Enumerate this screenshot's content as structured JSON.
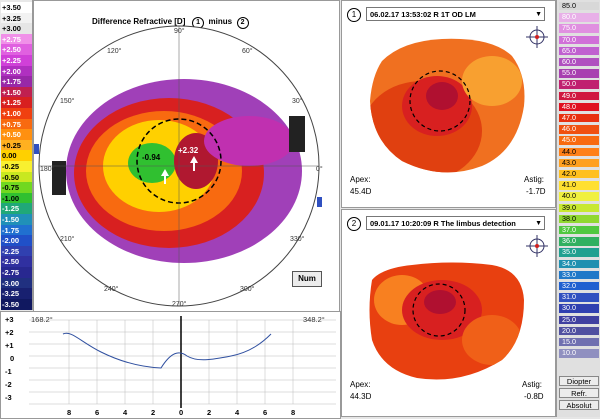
{
  "main": {
    "title": "Difference Refractive [D]",
    "circle_one": "1",
    "minus_label": "minus",
    "circle_two": "2",
    "num_button": "Num",
    "values": {
      "left": "-0.94",
      "right": "+2.32"
    },
    "angles": {
      "a90": "90°",
      "a120": "120°",
      "a60": "60°",
      "a150": "150°",
      "a30": "30°",
      "a180": "180°",
      "a0": "0°",
      "a210": "210°",
      "a330": "330°",
      "a240": "240°",
      "a300": "300°",
      "a270": "270°"
    }
  },
  "left_legend": {
    "labels": [
      "+3.50",
      "+3.25",
      "+3.00",
      "+2.75",
      "+2.50",
      "+2.25",
      "+2.00",
      "+1.75",
      "+1.50",
      "+1.25",
      "+1.00",
      "+0.75",
      "+0.50",
      "+0.25",
      "0.00",
      "-0.25",
      "-0.50",
      "-0.75",
      "-1.00",
      "-1.25",
      "-1.50",
      "-1.75",
      "-2.00",
      "-2.25",
      "-2.50",
      "-2.75",
      "-3.00",
      "-3.25",
      "-3.50"
    ],
    "colors": [
      "#ffffff",
      "#f2f2f2",
      "#e6e6e6",
      "#f090e8",
      "#e060e0",
      "#d040d8",
      "#b030c0",
      "#9828a8",
      "#c02050",
      "#d82020",
      "#f04010",
      "#f86a10",
      "#ff9010",
      "#ffb020",
      "#ffd000",
      "#f8f030",
      "#c8e820",
      "#70d820",
      "#30c030",
      "#20a878",
      "#2090b8",
      "#2070d0",
      "#2050c8",
      "#3040b0",
      "#3030a0",
      "#282890",
      "#203080",
      "#182070",
      "#101860"
    ]
  },
  "bottom_profile": {
    "left_angle": "168.2°",
    "right_angle": "348.2°",
    "y_ticks": [
      "+3",
      "+2",
      "+1",
      "0",
      "-1",
      "-2",
      "-3"
    ],
    "x_ticks": [
      "8",
      "6",
      "4",
      "2",
      "0",
      "2",
      "4",
      "6",
      "8"
    ]
  },
  "panel1": {
    "number": "1",
    "exam": "06.02.17 13:53:02 R 1T OD LM",
    "apex_label": "Apex:",
    "apex_value": "45.4D",
    "astig_label": "Astig:",
    "astig_value": "-1.7D"
  },
  "panel2": {
    "number": "2",
    "exam": "09.01.17 10:20:09 R The limbus detection",
    "apex_label": "Apex:",
    "apex_value": "44.3D",
    "astig_label": "Astig:",
    "astig_value": "-0.8D"
  },
  "right_legend": {
    "labels": [
      "85.0",
      "80.0",
      "75.0",
      "70.0",
      "65.0",
      "60.0",
      "55.0",
      "50.0",
      "49.0",
      "48.0",
      "47.0",
      "46.0",
      "45.0",
      "44.0",
      "43.0",
      "42.0",
      "41.0",
      "40.0",
      "39.0",
      "38.0",
      "37.0",
      "36.0",
      "35.0",
      "34.0",
      "33.0",
      "32.0",
      "31.0",
      "30.0",
      "25.0",
      "20.0",
      "15.0",
      "10.0"
    ],
    "colors": [
      "#d8d8d8",
      "#e8b0e8",
      "#e090e0",
      "#d070d8",
      "#c060d0",
      "#b050c0",
      "#a840b0",
      "#c02070",
      "#d01840",
      "#e01020",
      "#e83010",
      "#f05010",
      "#f86a10",
      "#ff8018",
      "#ffa020",
      "#ffc020",
      "#ffe030",
      "#f0f040",
      "#c8e830",
      "#90d830",
      "#50c840",
      "#30b060",
      "#20a090",
      "#2090b0",
      "#2078c8",
      "#2060d0",
      "#3050c0",
      "#3040b0",
      "#4040a0",
      "#5050a0",
      "#7070b0",
      "#9090c0"
    ],
    "buttons": [
      "Diopter",
      "Refr.",
      "Absolut"
    ]
  }
}
